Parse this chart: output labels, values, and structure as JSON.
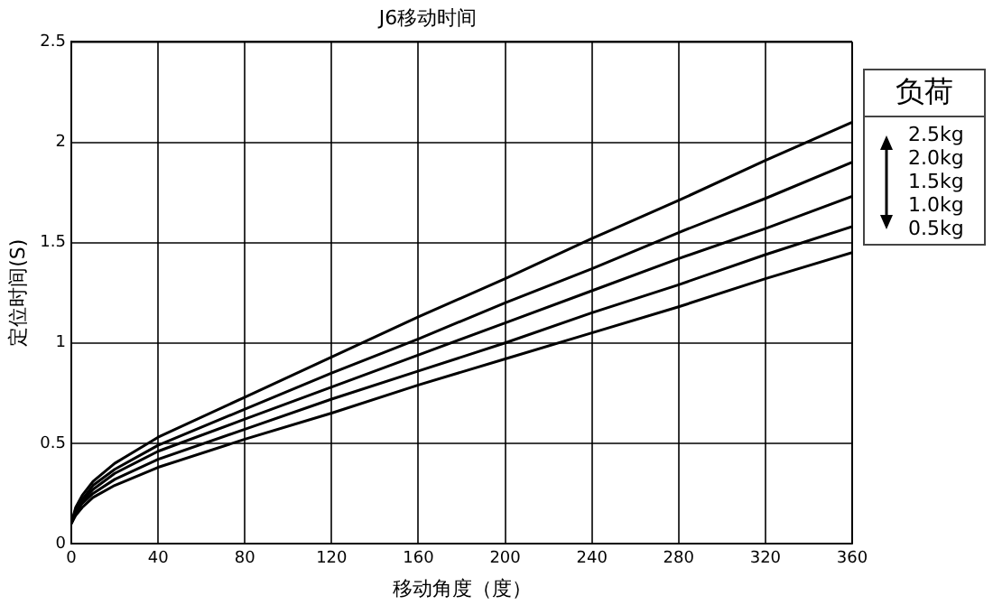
{
  "chart_data": {
    "type": "line",
    "title": "J6移动时间",
    "xlabel": "移动角度（度）",
    "ylabel": "定位时间(S)",
    "legend_title": "负荷",
    "legend": "right",
    "grid": true,
    "marker": "none",
    "line_style": "solid",
    "x": [
      0,
      2,
      5,
      10,
      20,
      40,
      80,
      120,
      160,
      200,
      240,
      280,
      320,
      360
    ],
    "xlim": [
      0,
      360
    ],
    "xticks": [
      0,
      40,
      80,
      120,
      160,
      200,
      240,
      280,
      320,
      360
    ],
    "ylim": [
      0,
      2.5
    ],
    "yticks": [
      0,
      0.5,
      1,
      1.5,
      2,
      2.5
    ],
    "series": [
      {
        "name": "2.5kg",
        "color": "#000000",
        "values": [
          0.1,
          0.18,
          0.24,
          0.31,
          0.4,
          0.53,
          0.73,
          0.93,
          1.13,
          1.32,
          1.52,
          1.71,
          1.91,
          2.1
        ]
      },
      {
        "name": "2.0kg",
        "color": "#000000",
        "values": [
          0.1,
          0.17,
          0.22,
          0.29,
          0.37,
          0.49,
          0.67,
          0.85,
          1.02,
          1.2,
          1.37,
          1.55,
          1.72,
          1.9
        ]
      },
      {
        "name": "1.5kg",
        "color": "#000000",
        "values": [
          0.1,
          0.16,
          0.21,
          0.27,
          0.35,
          0.46,
          0.62,
          0.78,
          0.94,
          1.1,
          1.26,
          1.42,
          1.57,
          1.73
        ]
      },
      {
        "name": "1.0kg",
        "color": "#000000",
        "values": [
          0.1,
          0.15,
          0.2,
          0.25,
          0.32,
          0.42,
          0.57,
          0.72,
          0.86,
          1.0,
          1.15,
          1.29,
          1.44,
          1.58
        ]
      },
      {
        "name": "0.5kg",
        "color": "#000000",
        "values": [
          0.1,
          0.14,
          0.18,
          0.23,
          0.29,
          0.38,
          0.52,
          0.65,
          0.79,
          0.92,
          1.05,
          1.18,
          1.32,
          1.45
        ]
      }
    ]
  }
}
